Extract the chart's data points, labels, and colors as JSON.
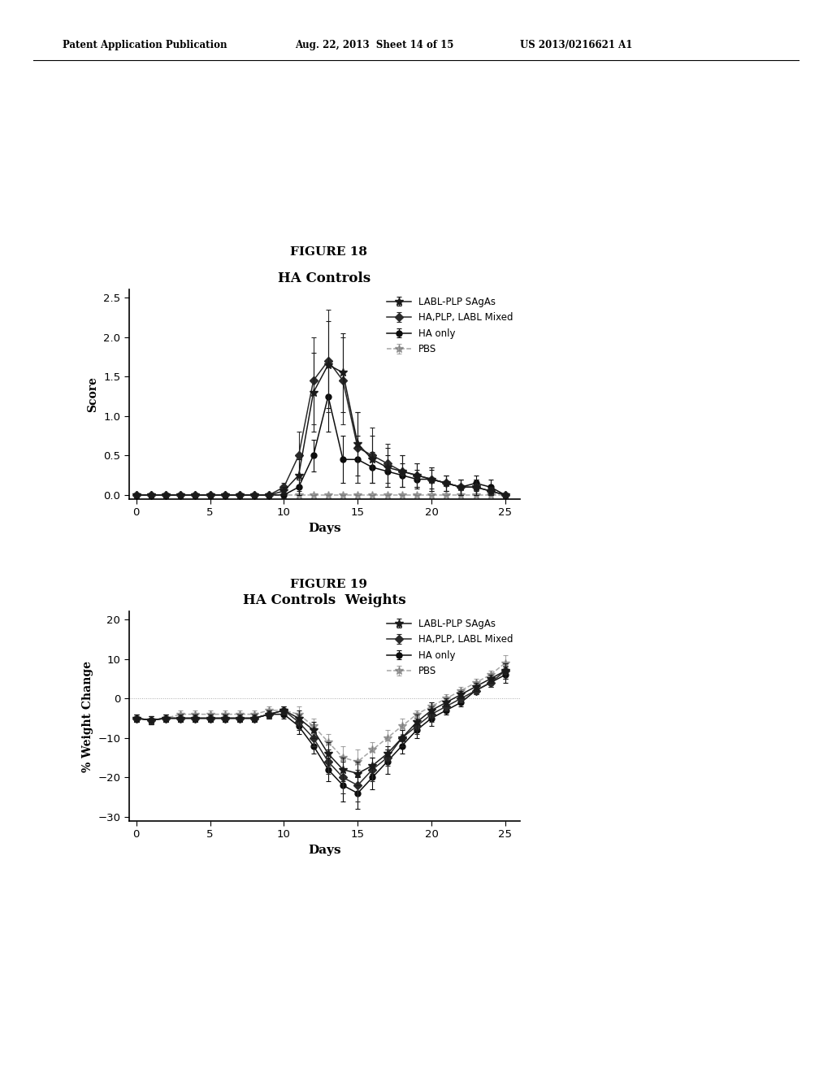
{
  "fig18_title": "HA Controls",
  "fig19_title": "HA Controls  Weights",
  "fig18_label": "FIGURE 18",
  "fig19_label": "FIGURE 19",
  "header_left": "Patent Application Publication",
  "header_mid": "Aug. 22, 2013  Sheet 14 of 15",
  "header_right": "US 2013/0216621 A1",
  "legend_labels": [
    "LABL-PLP SAgAs",
    "HA,PLP, LABL Mixed",
    "HA only",
    "PBS"
  ],
  "days": [
    0,
    1,
    2,
    3,
    4,
    5,
    6,
    7,
    8,
    9,
    10,
    11,
    12,
    13,
    14,
    15,
    16,
    17,
    18,
    19,
    20,
    21,
    22,
    23,
    24,
    25
  ],
  "fig18": {
    "LABL_PLP": {
      "mean": [
        0.0,
        0.0,
        0.0,
        0.0,
        0.0,
        0.0,
        0.0,
        0.0,
        0.0,
        0.0,
        0.05,
        0.25,
        1.3,
        1.65,
        1.55,
        0.65,
        0.45,
        0.35,
        0.3,
        0.25,
        0.2,
        0.15,
        0.1,
        0.1,
        0.05,
        0.0
      ],
      "err": [
        0.0,
        0.0,
        0.0,
        0.0,
        0.0,
        0.0,
        0.0,
        0.0,
        0.0,
        0.0,
        0.05,
        0.2,
        0.5,
        0.55,
        0.5,
        0.4,
        0.3,
        0.25,
        0.2,
        0.15,
        0.15,
        0.1,
        0.1,
        0.1,
        0.05,
        0.0
      ]
    },
    "HA_PLP_LABL": {
      "mean": [
        0.0,
        0.0,
        0.0,
        0.0,
        0.0,
        0.0,
        0.0,
        0.0,
        0.0,
        0.0,
        0.1,
        0.5,
        1.45,
        1.7,
        1.45,
        0.6,
        0.5,
        0.4,
        0.3,
        0.25,
        0.2,
        0.15,
        0.1,
        0.1,
        0.05,
        0.0
      ],
      "err": [
        0.0,
        0.0,
        0.0,
        0.0,
        0.0,
        0.0,
        0.0,
        0.0,
        0.0,
        0.0,
        0.05,
        0.3,
        0.55,
        0.65,
        0.55,
        0.45,
        0.35,
        0.25,
        0.2,
        0.15,
        0.15,
        0.1,
        0.1,
        0.1,
        0.05,
        0.0
      ]
    },
    "HA_only": {
      "mean": [
        0.0,
        0.0,
        0.0,
        0.0,
        0.0,
        0.0,
        0.0,
        0.0,
        0.0,
        0.0,
        0.0,
        0.1,
        0.5,
        1.25,
        0.45,
        0.45,
        0.35,
        0.3,
        0.25,
        0.2,
        0.2,
        0.15,
        0.1,
        0.15,
        0.1,
        0.0
      ],
      "err": [
        0.0,
        0.0,
        0.0,
        0.0,
        0.0,
        0.0,
        0.0,
        0.0,
        0.0,
        0.0,
        0.0,
        0.1,
        0.2,
        0.45,
        0.3,
        0.3,
        0.2,
        0.2,
        0.15,
        0.12,
        0.12,
        0.1,
        0.1,
        0.1,
        0.1,
        0.0
      ]
    },
    "PBS": {
      "mean": [
        0.0,
        0.0,
        0.0,
        0.0,
        0.0,
        0.0,
        0.0,
        0.0,
        0.0,
        0.0,
        0.0,
        0.0,
        0.0,
        0.0,
        0.0,
        0.0,
        0.0,
        0.0,
        0.0,
        0.0,
        0.0,
        0.0,
        0.0,
        0.0,
        0.0,
        0.0
      ],
      "err": [
        0.0,
        0.0,
        0.0,
        0.0,
        0.0,
        0.0,
        0.0,
        0.0,
        0.0,
        0.0,
        0.0,
        0.0,
        0.0,
        0.0,
        0.0,
        0.0,
        0.0,
        0.0,
        0.0,
        0.0,
        0.0,
        0.0,
        0.0,
        0.0,
        0.0,
        0.0
      ]
    }
  },
  "fig19": {
    "LABL_PLP": {
      "mean": [
        -5,
        -5.5,
        -5,
        -5,
        -5,
        -5,
        -5,
        -5,
        -5,
        -4,
        -3,
        -5,
        -8,
        -14,
        -18,
        -19,
        -17,
        -14,
        -10,
        -6,
        -3,
        -1,
        1,
        3,
        5,
        7
      ],
      "err": [
        1,
        1,
        1,
        1,
        1,
        1,
        1,
        1,
        1,
        1,
        1,
        2,
        2,
        3,
        3,
        3,
        2,
        2,
        2,
        2,
        2,
        1,
        1,
        1,
        1,
        2
      ]
    },
    "HA_PLP_LABL": {
      "mean": [
        -5,
        -5.5,
        -5,
        -5,
        -5,
        -5,
        -5,
        -5,
        -5,
        -4,
        -3,
        -6,
        -10,
        -16,
        -20,
        -22,
        -18,
        -15,
        -10,
        -7,
        -4,
        -2,
        0,
        2,
        4,
        7
      ],
      "err": [
        1,
        1,
        1,
        1,
        1,
        1,
        1,
        1,
        1,
        1,
        1,
        2,
        2,
        3,
        4,
        4,
        3,
        2,
        2,
        2,
        2,
        1,
        1,
        1,
        1,
        2
      ]
    },
    "HA_only": {
      "mean": [
        -5,
        -5.5,
        -5,
        -5,
        -5,
        -5,
        -5,
        -5,
        -5,
        -4,
        -4,
        -7,
        -12,
        -18,
        -22,
        -24,
        -20,
        -16,
        -12,
        -8,
        -5,
        -3,
        -1,
        2,
        4,
        6
      ],
      "err": [
        1,
        1,
        1,
        1,
        1,
        1,
        1,
        1,
        1,
        1,
        1,
        2,
        2,
        3,
        4,
        4,
        3,
        3,
        2,
        2,
        2,
        1,
        1,
        1,
        1,
        2
      ]
    },
    "PBS": {
      "mean": [
        -5,
        -5.5,
        -5,
        -4,
        -4,
        -4,
        -4,
        -4,
        -4,
        -3,
        -3,
        -4,
        -7,
        -11,
        -15,
        -16,
        -13,
        -10,
        -7,
        -4,
        -2,
        0,
        2,
        4,
        6,
        9
      ],
      "err": [
        1,
        1,
        1,
        1,
        1,
        1,
        1,
        1,
        1,
        1,
        1,
        2,
        2,
        2,
        3,
        3,
        2,
        2,
        2,
        1,
        1,
        1,
        1,
        1,
        1,
        2
      ]
    }
  },
  "background_color": "#ffffff"
}
